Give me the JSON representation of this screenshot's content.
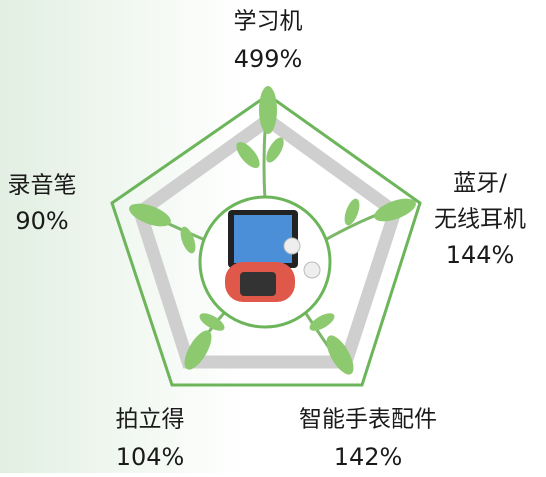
{
  "nodes": [
    {
      "label_lines": [
        "学习机"
      ],
      "value": "499%"
    },
    {
      "label_lines": [
        "蓝牙/",
        "无线耳机"
      ],
      "value": "144%"
    },
    {
      "label_lines": [
        "智能手表配件"
      ],
      "value": "142%"
    },
    {
      "label_lines": [
        "拍立得"
      ],
      "value": "104%"
    },
    {
      "label_lines": [
        "录音笔"
      ],
      "value": "90%"
    }
  ]
}
